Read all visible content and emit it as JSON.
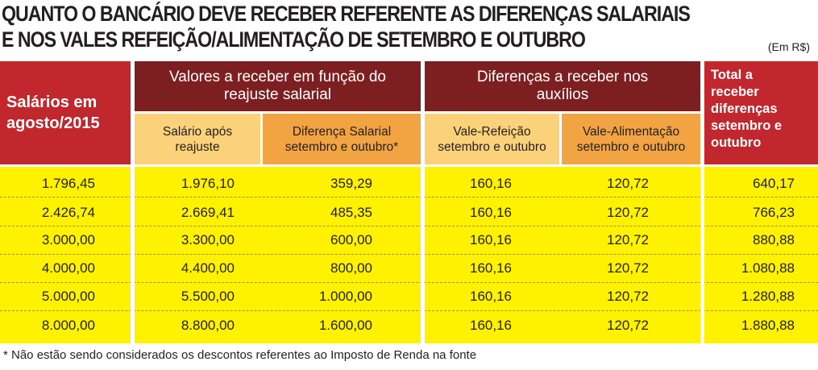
{
  "title": {
    "line1": "QUANTO O BANCÁRIO DEVE RECEBER REFERENTE AS DIFERENÇAS SALARIAIS",
    "line2": "E NOS VALES REFEIÇÃO/ALIMENTAÇÃO DE SETEMBRO E OUTUBRO"
  },
  "unit": "(Em R$)",
  "header": {
    "salarios": "Salários em agosto/2015",
    "group1": "Valores a receber em função do reajuste salarial",
    "group2": "Diferenças a receber nos auxílios",
    "total": "Total a receber diferenças setembro e outubro",
    "sub1": "Salário após reajuste",
    "sub2": "Diferença Salarial setembro e outubro*",
    "sub3": "Vale-Refeição setembro e outubro",
    "sub4": "Vale-Alimentação setembro e outubro"
  },
  "rows": [
    [
      "1.796,45",
      "1.976,10",
      "359,29",
      "160,16",
      "120,72",
      "640,17"
    ],
    [
      "2.426,74",
      "2.669,41",
      "485,35",
      "160,16",
      "120,72",
      "766,23"
    ],
    [
      "3.000,00",
      "3.300,00",
      "600,00",
      "160,16",
      "120,72",
      "880,88"
    ],
    [
      "4.000,00",
      "4.400,00",
      "800,00",
      "160,16",
      "120,72",
      "1.080,88"
    ],
    [
      "5.000,00",
      "5.500,00",
      "1.000,00",
      "160,16",
      "120,72",
      "1.280,88"
    ],
    [
      "8.000,00",
      "8.800,00",
      "1.600,00",
      "160,16",
      "120,72",
      "1.880,88"
    ]
  ],
  "footnote": "* Não estão sendo considerados os descontos referentes ao Imposto de Renda na fonte",
  "colors": {
    "red": "#c1272d",
    "dark_red": "#7d1f21",
    "yellow": "#fff200",
    "light_orange": "#fbd27a",
    "orange": "#f2a442"
  }
}
